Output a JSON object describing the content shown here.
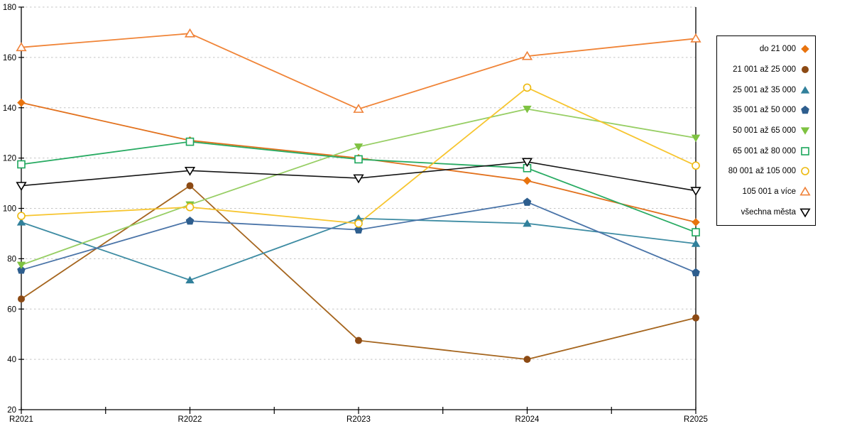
{
  "chart": {
    "background": "#FFFFFF",
    "plot_background": "#FFFFFF",
    "grid_color": "#C4C4C4",
    "axis_color": "#000000",
    "tick_label_color": "#000000",
    "legend_border_color": "#000000"
  },
  "chart_data": {
    "type": "line",
    "title": "",
    "xlabel": "",
    "ylabel": "",
    "categories": [
      "R2021",
      "R2022",
      "R2023",
      "R2024",
      "R2025"
    ],
    "ylim": [
      20,
      180
    ],
    "yticks": [
      20,
      40,
      60,
      80,
      100,
      120,
      140,
      160,
      180
    ],
    "grid": "horizontal-dashed",
    "legend_position": "right-outside",
    "series": [
      {
        "name": "do 21 000",
        "marker": "diamond",
        "fill": "solid",
        "color": "#E8730E",
        "line_color": "#E2711D",
        "values": [
          142,
          127,
          120,
          111,
          94.5
        ]
      },
      {
        "name": "21 001 až 25 000",
        "marker": "circle",
        "fill": "solid",
        "color": "#8C4A14",
        "line_color": "#A5651E",
        "values": [
          64,
          109,
          47.5,
          40,
          56.5
        ]
      },
      {
        "name": "25 001 až 35 000",
        "marker": "triangle-up",
        "fill": "solid",
        "color": "#31809B",
        "line_color": "#3E8CA3",
        "values": [
          94.5,
          71.5,
          96,
          94,
          86
        ]
      },
      {
        "name": "35 001 až 50 000",
        "marker": "pentagon",
        "fill": "solid",
        "color": "#2E5E8E",
        "line_color": "#4A74A8",
        "values": [
          75.5,
          95,
          91.5,
          102.5,
          74.5
        ]
      },
      {
        "name": "50 001 až 65 000",
        "marker": "triangle-down",
        "fill": "solid",
        "color": "#7EC241",
        "line_color": "#97CE64",
        "values": [
          77.5,
          101.5,
          124.5,
          139.5,
          128
        ]
      },
      {
        "name": "65 001 až 80 000",
        "marker": "square",
        "fill": "open",
        "color": "#1CA65C",
        "line_color": "#29AB63",
        "values": [
          117.5,
          126.5,
          119.5,
          116,
          90.5
        ]
      },
      {
        "name": "80 001 až 105 000",
        "marker": "circle",
        "fill": "open",
        "color": "#EDB90E",
        "line_color": "#F7C52F",
        "values": [
          97,
          100.5,
          94,
          148,
          117
        ]
      },
      {
        "name": "105 001 a více",
        "marker": "triangle-up",
        "fill": "open",
        "color": "#EF8138",
        "line_color": "#F08437",
        "values": [
          164,
          169.5,
          139.5,
          160.5,
          167.5
        ]
      },
      {
        "name": "všechna města",
        "marker": "triangle-down",
        "fill": "open",
        "color": "#000000",
        "line_color": "#161616",
        "values": [
          109,
          115,
          112,
          118.5,
          107
        ]
      }
    ]
  }
}
